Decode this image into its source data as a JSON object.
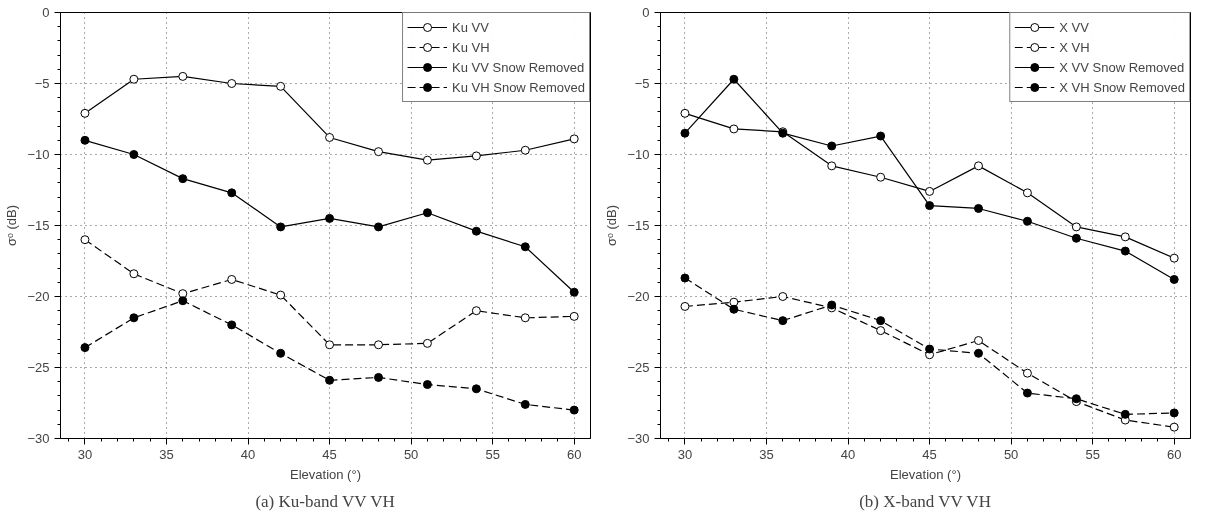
{
  "chart_data": [
    {
      "type": "line",
      "title": "(a) Ku-band VV VH",
      "xlabel": "Elevation (°)",
      "ylabel": "σᵒ (dB)",
      "x": [
        30,
        33,
        36,
        39,
        42,
        45,
        48,
        51,
        54,
        57,
        60
      ],
      "xlim": [
        28.5,
        61
      ],
      "xticks": [
        30,
        35,
        40,
        45,
        50,
        55,
        60
      ],
      "ylim": [
        -30,
        0
      ],
      "yticks": [
        -30,
        -25,
        -20,
        -15,
        -10,
        -5,
        0
      ],
      "grid": true,
      "legend": "top right",
      "marker": "circle",
      "series": [
        {
          "name": "Ku VV",
          "color": "#ffffff",
          "line_style": "solid",
          "values": [
            -7.1,
            -4.7,
            -4.5,
            -5.0,
            -5.2,
            -8.8,
            -9.8,
            -10.4,
            -10.1,
            -9.7,
            -8.9
          ]
        },
        {
          "name": "Ku VH",
          "color": "#ffffff",
          "line_style": "dashed",
          "values": [
            -16.0,
            -18.4,
            -19.8,
            -18.8,
            -19.9,
            -23.4,
            -23.4,
            -23.3,
            -21.0,
            -21.5,
            -21.4
          ]
        },
        {
          "name": "Ku VV Snow Removed",
          "color": "#000000",
          "line_style": "solid",
          "values": [
            -9.0,
            -10.0,
            -11.7,
            -12.7,
            -15.1,
            -14.5,
            -15.1,
            -14.1,
            -15.4,
            -16.5,
            -19.7
          ]
        },
        {
          "name": "Ku VH Snow Removed",
          "color": "#000000",
          "line_style": "dashed",
          "values": [
            -23.6,
            -21.5,
            -20.3,
            -22.0,
            -24.0,
            -25.9,
            -25.7,
            -26.2,
            -26.5,
            -27.6,
            -28.0
          ]
        }
      ]
    },
    {
      "type": "line",
      "title": "(b) X-band VV VH",
      "xlabel": "Elevation (°)",
      "ylabel": "σᵒ (dB)",
      "x": [
        30,
        33,
        36,
        39,
        42,
        45,
        48,
        51,
        54,
        57,
        60
      ],
      "xlim": [
        28.5,
        61
      ],
      "xticks": [
        30,
        35,
        40,
        45,
        50,
        55,
        60
      ],
      "ylim": [
        -30,
        0
      ],
      "yticks": [
        -30,
        -25,
        -20,
        -15,
        -10,
        -5,
        0
      ],
      "grid": true,
      "legend": "top right",
      "marker": "circle",
      "series": [
        {
          "name": "X VV",
          "color": "#ffffff",
          "line_style": "solid",
          "values": [
            -7.1,
            -8.2,
            -8.4,
            -10.8,
            -11.6,
            -12.6,
            -10.8,
            -12.7,
            -15.1,
            -15.8,
            -17.3
          ]
        },
        {
          "name": "X VH",
          "color": "#ffffff",
          "line_style": "dashed",
          "values": [
            -20.7,
            -20.4,
            -20.0,
            -20.8,
            -22.4,
            -24.1,
            -23.1,
            -25.4,
            -27.4,
            -28.7,
            -29.2
          ]
        },
        {
          "name": "X VV Snow Removed",
          "color": "#000000",
          "line_style": "solid",
          "values": [
            -8.5,
            -4.7,
            -8.5,
            -9.4,
            -8.7,
            -13.6,
            -13.8,
            -14.7,
            -15.9,
            -16.8,
            -18.8
          ]
        },
        {
          "name": "X VH Snow Removed",
          "color": "#000000",
          "line_style": "dashed",
          "values": [
            -18.7,
            -20.9,
            -21.7,
            -20.6,
            -21.7,
            -23.7,
            -24.0,
            -26.8,
            -27.2,
            -28.3,
            -28.2
          ]
        }
      ]
    }
  ]
}
